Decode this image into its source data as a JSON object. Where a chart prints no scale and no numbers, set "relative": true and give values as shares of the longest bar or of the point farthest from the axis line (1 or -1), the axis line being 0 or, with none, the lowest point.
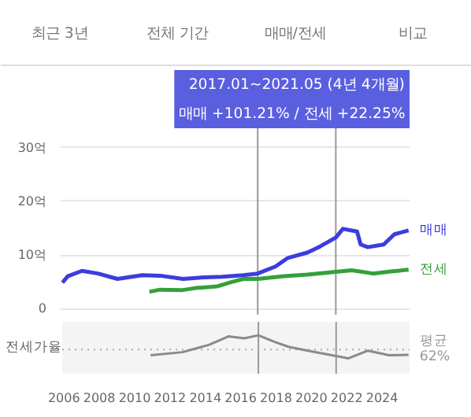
{
  "chart_data": [
    {
      "type": "other",
      "annotations": [
        "최근 3년",
        "전체 기간",
        "매매/전세",
        "비교"
      ]
    },
    {
      "type": "line",
      "annotations": [
        "2017.01~2021.05 (4년 4개월)",
        "매매 +101.21%  /  전세 +22.25%"
      ],
      "xlim": [
        2005.9,
        2025.6
      ],
      "xticks": [
        2006,
        2008,
        2010,
        2012,
        2014,
        2016,
        2018,
        2020,
        2022,
        2024
      ],
      "ylim": [
        0,
        30
      ],
      "yticks": [
        0,
        {
          "value": 10,
          "label": "10억"
        },
        {
          "value": 20,
          "label": "20억"
        },
        {
          "value": 30,
          "label": "30억"
        }
      ],
      "tick_labels": "y",
      "grid": "y",
      "series": [
        {
          "name": "매매",
          "color": "#3c3ce0",
          "x": [
            2006.0,
            2006.3,
            2007.1,
            2008.0,
            2009.1,
            2010.5,
            2011.5,
            2012.8,
            2014.0,
            2015.0,
            2016.2,
            2017.0,
            2018.0,
            2018.7,
            2019.8,
            2020.5,
            2021.4,
            2021.8,
            2022.6,
            2022.8,
            2023.2,
            2024.1,
            2024.7,
            2025.5
          ],
          "values": [
            4.9,
            6.1,
            7.1,
            6.6,
            5.6,
            6.3,
            6.2,
            5.6,
            5.9,
            6.0,
            6.3,
            6.6,
            7.9,
            9.5,
            10.5,
            11.6,
            13.3,
            14.9,
            14.4,
            12.0,
            11.5,
            12.0,
            13.9,
            14.6
          ]
        },
        {
          "name": "전세",
          "color": "#35a03a",
          "x": [
            2010.9,
            2011.5,
            2012.7,
            2013.5,
            2014.7,
            2015.5,
            2016.2,
            2017.0,
            2018.5,
            2019.8,
            2021.4,
            2022.3,
            2023.5,
            2024.5,
            2025.5
          ],
          "values": [
            3.2,
            3.6,
            3.5,
            3.9,
            4.2,
            5.0,
            5.6,
            5.6,
            6.1,
            6.4,
            6.9,
            7.2,
            6.6,
            7.0,
            7.3
          ]
        }
      ],
      "ref_lines": [
        {
          "axis": "x",
          "value": 2017.0,
          "color": "#999999"
        },
        {
          "axis": "x",
          "value": 2021.4,
          "color": "#999999"
        }
      ]
    },
    {
      "type": "line",
      "relative": true,
      "ylabel": "전세가율",
      "xlim": [
        2005.9,
        2025.6
      ],
      "xticks": [
        2006,
        2008,
        2010,
        2012,
        2014,
        2016,
        2018,
        2020,
        2022,
        2024
      ],
      "tick_labels": "x",
      "series": [
        {
          "color": "#8a8a8a",
          "x": [
            2010.9,
            2012.7,
            2014.2,
            2015.3,
            2016.2,
            2017.0,
            2017.9,
            2018.7,
            2019.8,
            2021.4,
            2022.1,
            2023.2,
            2024.4,
            2025.5
          ],
          "values": [
            0.48,
            0.56,
            0.75,
            0.97,
            0.92,
            1,
            0.83,
            0.7,
            0.6,
            0.46,
            0.4,
            0.6,
            0.48,
            0.49
          ]
        }
      ],
      "ref_lines": [
        {
          "axis": "x",
          "value": 2017.0,
          "color": "#999999"
        },
        {
          "axis": "x",
          "value": 2021.4,
          "color": "#999999"
        },
        {
          "axis": "y",
          "value": 0.63,
          "label": "평균\n62%",
          "color": "#aaaaaa",
          "line_style": "dotted"
        }
      ]
    }
  ]
}
